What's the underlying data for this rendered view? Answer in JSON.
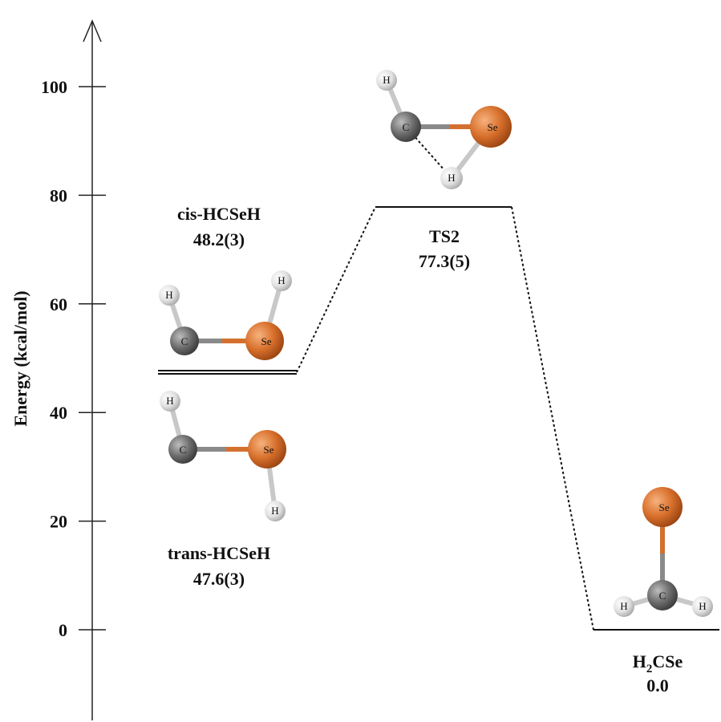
{
  "axis": {
    "label": "Energy (kcal/mol)",
    "ticks": [
      0,
      20,
      40,
      60,
      80,
      100
    ],
    "range": [
      -15,
      113
    ]
  },
  "states": [
    {
      "key": "cis",
      "name": "cis-HCSeH",
      "value_text": "48.2(3)",
      "energy": 48.2
    },
    {
      "key": "trans",
      "name": "trans-HCSeH",
      "value_text": "47.6(3)",
      "energy": 47.6
    },
    {
      "key": "ts2",
      "name": "TS2",
      "value_text": "77.3(5)",
      "energy": 77.3
    },
    {
      "key": "h2cse",
      "name_main": "H",
      "name_sub": "2",
      "name_tail": "CSe",
      "value_text": "0.0",
      "energy": 0.0
    }
  ],
  "atom_labels": {
    "carbon": "C",
    "selenium": "Se",
    "hydrogen": "H"
  },
  "colors": {
    "carbon": "#6b6b6b",
    "selenium": "#d4702e",
    "hydrogen": "#e6e6e6",
    "bond": "#8a8a8a"
  }
}
